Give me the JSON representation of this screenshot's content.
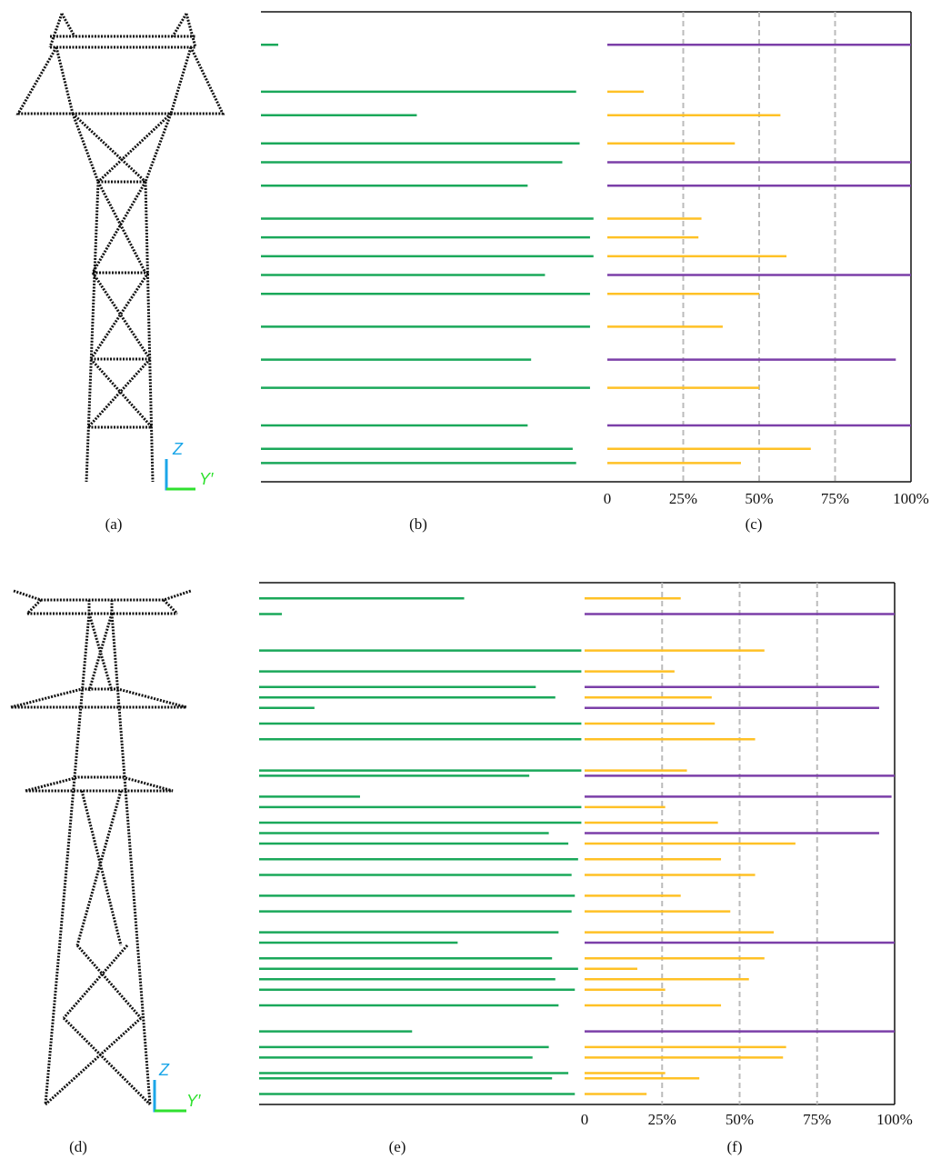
{
  "chart_data": [
    {
      "type": "bar",
      "color": "#1aa85a",
      "xlim": [
        100,
        0
      ],
      "ylim": [
        0,
        100
      ],
      "y": [
        93,
        83,
        78,
        72,
        68,
        63,
        56,
        52,
        48,
        44,
        40,
        33,
        26,
        20,
        12,
        7,
        4
      ],
      "values": [
        95,
        9,
        55,
        8,
        13,
        23,
        4,
        5,
        4,
        18,
        5,
        5,
        22,
        5,
        23,
        10,
        9
      ]
    },
    {
      "type": "bar",
      "xlim": [
        0,
        100
      ],
      "ylim": [
        0,
        100
      ],
      "grid": true,
      "xticks": [
        0,
        {
          "value": 25,
          "label": "25%"
        },
        {
          "value": 50,
          "label": "50%"
        },
        {
          "value": 75,
          "label": "75%"
        },
        {
          "value": 100,
          "label": "100%"
        }
      ],
      "series": [
        {
          "color": "#7b3fa8",
          "y": [
            93,
            68,
            63,
            44,
            26,
            12
          ],
          "values": [
            100,
            100,
            100,
            100,
            95,
            100
          ]
        },
        {
          "color": "#ffc125",
          "y": [
            83,
            78,
            72,
            56,
            52,
            48,
            40,
            33,
            20,
            7,
            4
          ],
          "values": [
            12,
            57,
            42,
            31,
            30,
            59,
            50,
            38,
            50,
            67,
            44
          ]
        }
      ]
    },
    {
      "type": "bar",
      "color": "#1aa85a",
      "xlim": [
        100,
        0
      ],
      "ylim": [
        0,
        100
      ],
      "y": [
        97,
        94,
        87,
        83,
        80,
        78,
        76,
        73,
        70,
        64,
        63,
        59,
        57,
        54,
        52,
        50,
        47,
        44,
        40,
        37,
        33,
        31,
        28,
        26,
        24,
        22,
        19,
        14,
        11,
        9,
        6,
        5,
        2
      ],
      "values": [
        37,
        93,
        1,
        1,
        15,
        9,
        83,
        1,
        1,
        1,
        17,
        69,
        1,
        1,
        11,
        5,
        2,
        4,
        3,
        4,
        8,
        39,
        10,
        2,
        9,
        3,
        8,
        53,
        11,
        16,
        5,
        10,
        3
      ]
    },
    {
      "type": "bar",
      "xlim": [
        0,
        100
      ],
      "ylim": [
        0,
        100
      ],
      "grid": true,
      "xticks": [
        0,
        {
          "value": 25,
          "label": "25%"
        },
        {
          "value": 50,
          "label": "50%"
        },
        {
          "value": 75,
          "label": "75%"
        },
        {
          "value": 100,
          "label": "100%"
        }
      ],
      "series": [
        {
          "color": "#7b3fa8",
          "y": [
            94,
            80,
            76,
            63,
            59,
            52,
            31,
            14
          ],
          "values": [
            100,
            95,
            95,
            100,
            99,
            95,
            100,
            100
          ]
        },
        {
          "color": "#ffc125",
          "y": [
            97,
            87,
            83,
            78,
            73,
            70,
            64,
            57,
            54,
            50,
            47,
            44,
            40,
            37,
            33,
            28,
            26,
            24,
            22,
            19,
            11,
            9,
            6,
            5,
            2
          ],
          "values": [
            31,
            58,
            29,
            41,
            42,
            55,
            33,
            26,
            43,
            68,
            44,
            55,
            31,
            47,
            61,
            58,
            17,
            53,
            26,
            44,
            65,
            64,
            26,
            37,
            20
          ]
        }
      ]
    }
  ],
  "towers": [
    {
      "z": "Z",
      "y": "Y′"
    },
    {
      "z": "Z",
      "y": "Y′"
    }
  ],
  "panel_labels": [
    "(a)",
    "(b)",
    "(c)",
    "(d)",
    "(e)",
    "(f)"
  ]
}
